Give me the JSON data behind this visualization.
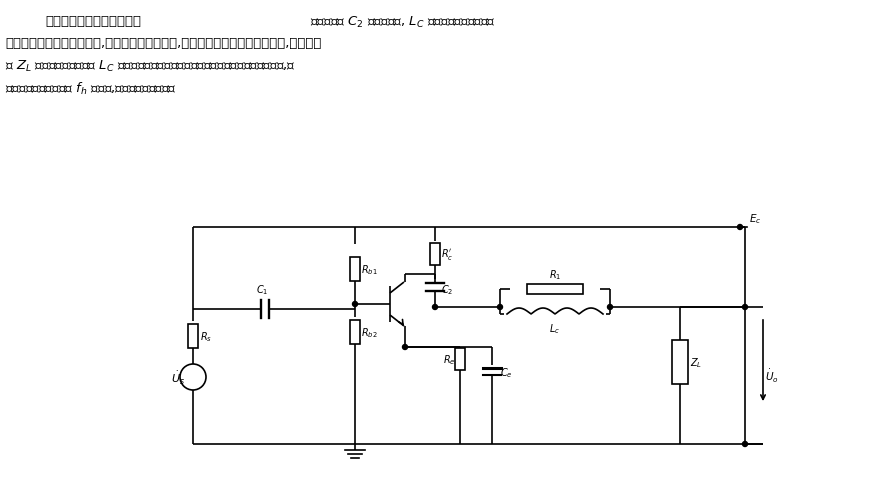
{
  "bg_color": "#ffffff",
  "line_color": "#000000",
  "lw": 1.2
}
